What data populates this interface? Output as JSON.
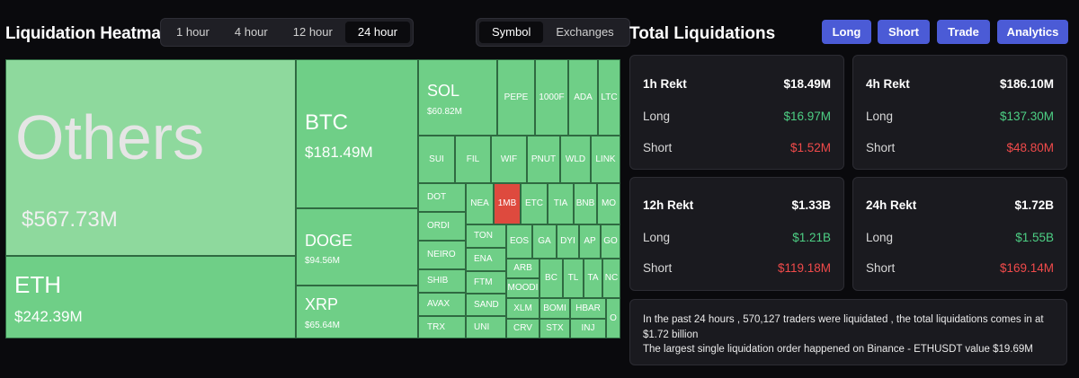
{
  "heatmap": {
    "title": "Liquidation Heatmap",
    "time_tabs": [
      {
        "label": "1 hour",
        "active": false
      },
      {
        "label": "4 hour",
        "active": false
      },
      {
        "label": "12 hour",
        "active": false
      },
      {
        "label": "24 hour",
        "active": true
      }
    ],
    "view_tabs": [
      {
        "label": "Symbol",
        "active": true
      },
      {
        "label": "Exchanges",
        "active": false
      }
    ],
    "cells": {
      "others": {
        "symbol": "Others",
        "value": "$567.73M"
      },
      "eth": {
        "symbol": "ETH",
        "value": "$242.39M"
      },
      "btc": {
        "symbol": "BTC",
        "value": "$181.49M"
      },
      "doge": {
        "symbol": "DOGE",
        "value": "$94.56M"
      },
      "xrp": {
        "symbol": "XRP",
        "value": "$65.64M"
      },
      "sol": {
        "symbol": "SOL",
        "value": "$60.82M"
      },
      "pepe": "PEPE",
      "k1000": "1000F",
      "ada": "ADA",
      "ltc": "LTC",
      "sui": "SUI",
      "fil": "FIL",
      "wif": "WIF",
      "pnut": "PNUT",
      "wld": "WLD",
      "link": "LINK",
      "dot": "DOT",
      "near": "NEA",
      "m1": "1MB",
      "etc": "ETC",
      "tia": "TIA",
      "bnb": "BNB",
      "mo": "MO",
      "ordi": "ORDI",
      "neiro": "NEIRO",
      "shib": "SHIB",
      "avax": "AVAX",
      "trx": "TRX",
      "ton": "TON",
      "ena": "ENA",
      "ftm": "FTM",
      "sand": "SAND",
      "uni": "UNI",
      "eos": "EOS",
      "ga": "GA",
      "dy": "DYI",
      "ap": "AP",
      "go": "GO",
      "arb": "ARB",
      "bo": "BC",
      "tu": "TL",
      "ta": "TA",
      "nc": "NC",
      "mood": "MOODI",
      "xlm": "XLM",
      "bome": "BOMI",
      "hbar": "HBAR",
      "crv": "CRV",
      "stx": "STX",
      "inj": "INJ",
      "o": "O"
    }
  },
  "total": {
    "title": "Total Liquidations",
    "buttons": [
      "Long",
      "Short",
      "Trade",
      "Analytics"
    ],
    "cards": [
      {
        "title": "1h Rekt",
        "total": "$18.49M",
        "long_label": "Long",
        "long": "$16.97M",
        "short_label": "Short",
        "short": "$1.52M"
      },
      {
        "title": "4h Rekt",
        "total": "$186.10M",
        "long_label": "Long",
        "long": "$137.30M",
        "short_label": "Short",
        "short": "$48.80M"
      },
      {
        "title": "12h Rekt",
        "total": "$1.33B",
        "long_label": "Long",
        "long": "$1.21B",
        "short_label": "Short",
        "short": "$119.18M"
      },
      {
        "title": "24h Rekt",
        "total": "$1.72B",
        "long_label": "Long",
        "long": "$1.55B",
        "short_label": "Short",
        "short": "$169.14M"
      }
    ],
    "summary_line1": "In the past 24 hours , 570,127 traders were liquidated , the total liquidations comes in at $1.72 billion",
    "summary_line2": "The largest single liquidation order happened on Binance - ETHUSDT value $19.69M"
  },
  "colors": {
    "green": "#6fcf87",
    "red": "#de4a3e",
    "button": "#4b5bd6",
    "long": "#4dcf84",
    "short": "#f04a4a"
  }
}
